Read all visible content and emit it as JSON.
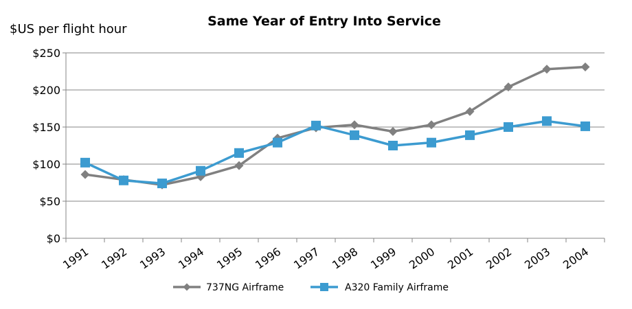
{
  "chart_data": {
    "type": "line",
    "title": "Same Year of Entry Into Service",
    "ylabel": "$US per flight hour",
    "xlabel": "",
    "categories": [
      "1991",
      "1992",
      "1993",
      "1994",
      "1995",
      "1996",
      "1997",
      "1998",
      "1999",
      "2000",
      "2001",
      "2002",
      "2003",
      "2004"
    ],
    "ylim": [
      0,
      250
    ],
    "yticks": [
      0,
      50,
      100,
      150,
      200,
      250
    ],
    "ytick_labels": [
      "$0",
      "$50",
      "$100",
      "$150",
      "$200",
      "$250"
    ],
    "grid": true,
    "legend_position": "bottom",
    "series": [
      {
        "name": "737NG Airframe",
        "color": "#808080",
        "marker": "diamond",
        "values": [
          86,
          79,
          72,
          83,
          98,
          135,
          149,
          153,
          144,
          153,
          171,
          204,
          228,
          231
        ]
      },
      {
        "name": "A320 Family Airframe",
        "color": "#3c9bd0",
        "marker": "square",
        "values": [
          102,
          78,
          74,
          91,
          115,
          129,
          152,
          139,
          125,
          129,
          139,
          150,
          158,
          151
        ]
      }
    ]
  }
}
